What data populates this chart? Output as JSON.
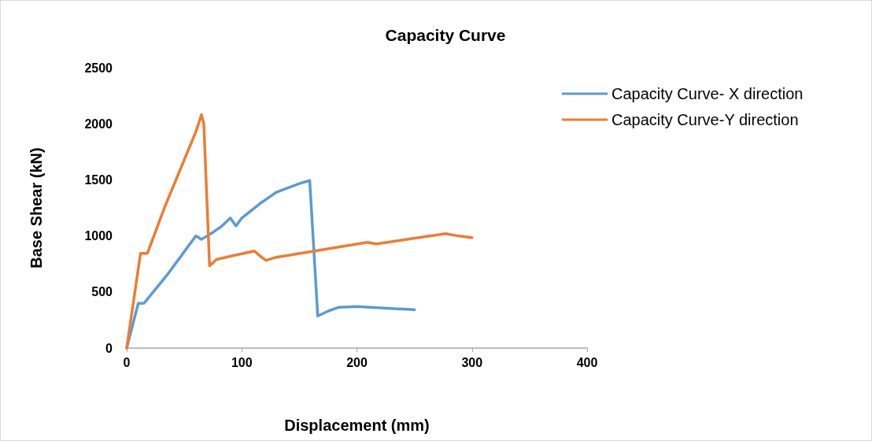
{
  "chart_data": {
    "type": "line",
    "title": "Capacity Curve",
    "xlabel": "Displacement (mm)",
    "ylabel": "Base Shear (kN)",
    "xlim": [
      0,
      400
    ],
    "xticks": [
      0,
      100,
      200,
      300,
      400
    ],
    "ylim": [
      0,
      2500
    ],
    "yticks": [
      0,
      500,
      1000,
      1500,
      2000,
      2500
    ],
    "grid": false,
    "legend": "top right",
    "marker": "none",
    "line_style": "solid",
    "series": [
      {
        "name": "Capacity Curve- X direction",
        "color": "#5b9bd5",
        "x": [
          0,
          10,
          15,
          35,
          60,
          65,
          75,
          82,
          90,
          95,
          100,
          116,
          130,
          150,
          159,
          166,
          175,
          184,
          200,
          250
        ],
        "values": [
          0,
          398,
          400,
          650,
          1000,
          970,
          1033,
          1082,
          1160,
          1089,
          1160,
          1290,
          1390,
          1467,
          1494,
          286,
          330,
          363,
          370,
          342
        ]
      },
      {
        "name": "Capacity Curve-Y direction",
        "color": "#ed7d31",
        "x": [
          0,
          12,
          18,
          33,
          60,
          65,
          67,
          72,
          78,
          95,
          111,
          116,
          121,
          130,
          209,
          217,
          277,
          288,
          300
        ],
        "values": [
          0,
          845,
          845,
          1257,
          1927,
          2081,
          2000,
          733,
          790,
          830,
          866,
          820,
          782,
          810,
          943,
          929,
          1020,
          1000,
          985
        ]
      }
    ]
  }
}
